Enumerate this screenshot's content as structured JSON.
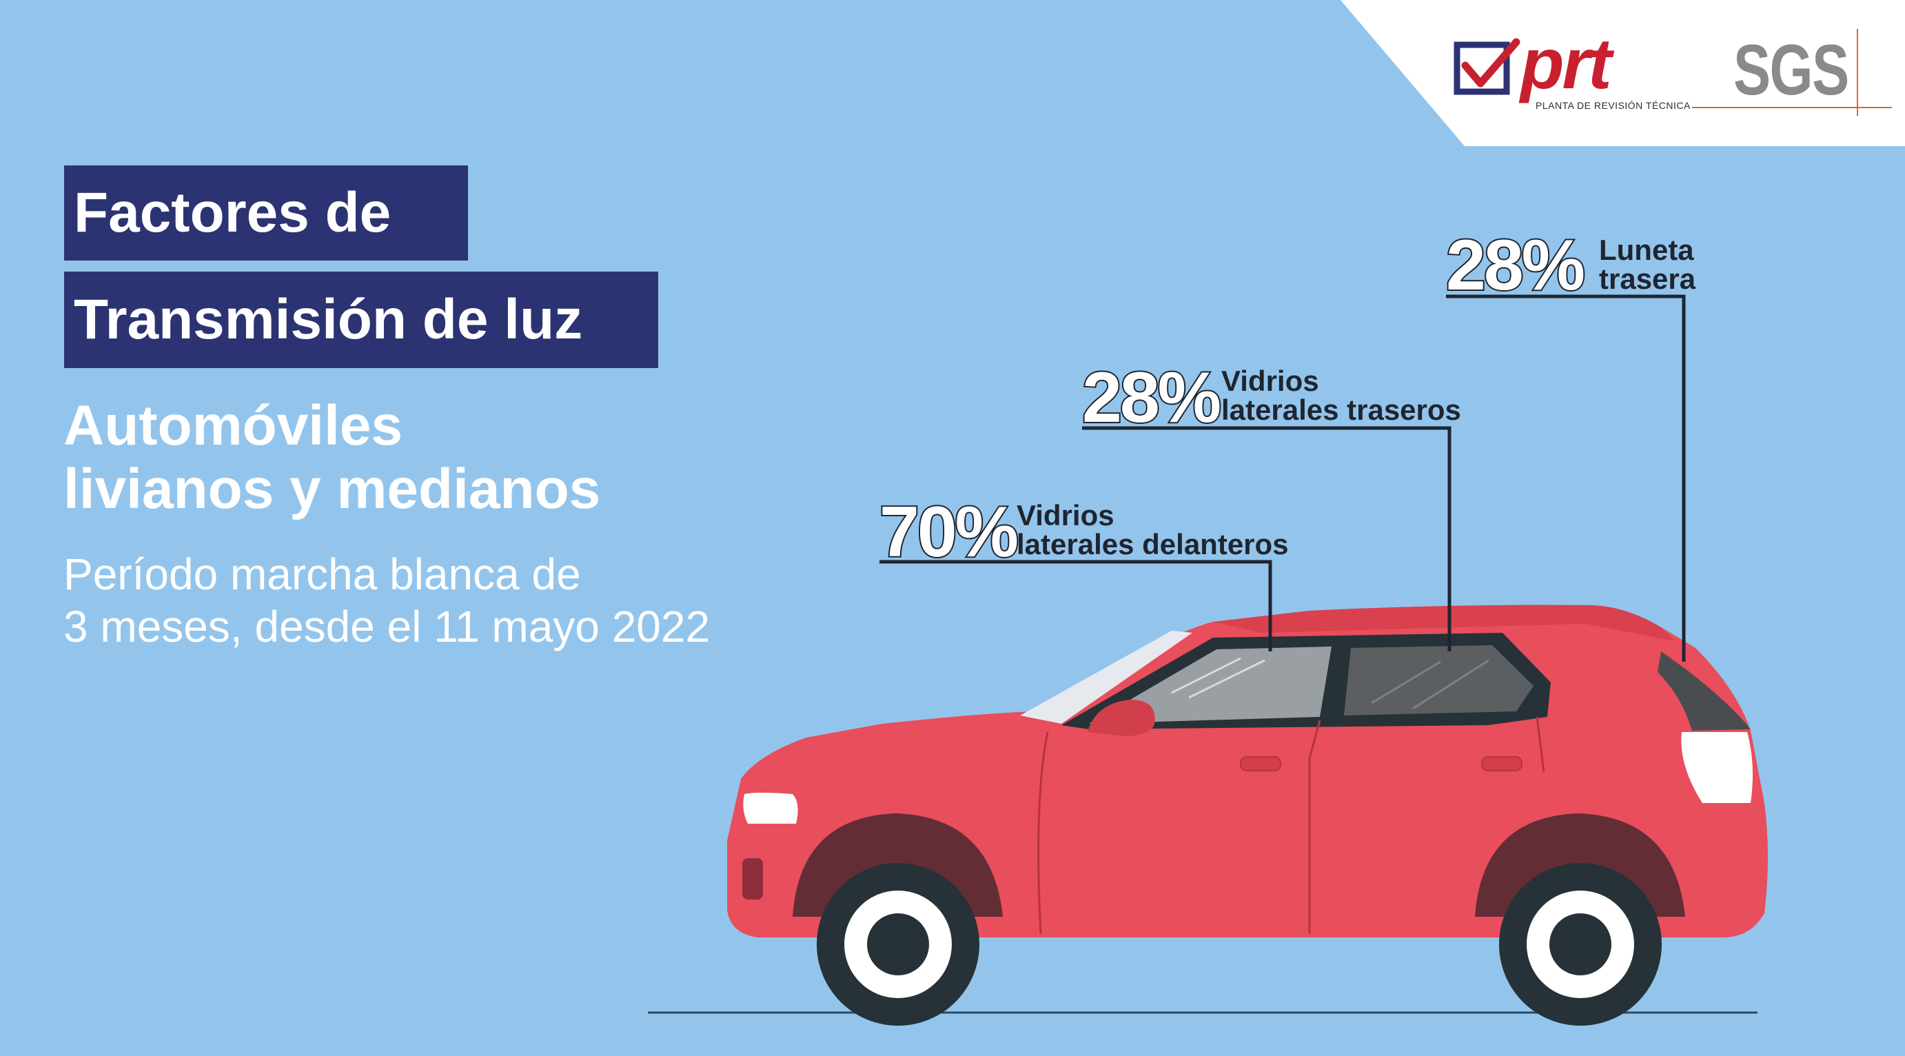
{
  "logos": {
    "prt": {
      "word": "prt",
      "subtitle": "PLANTA DE REVISIÓN TÉCNICA",
      "color": "#c8202f"
    },
    "sgs": {
      "word": "SGS",
      "color": "#8a8a8a",
      "accent": "#e0662a"
    }
  },
  "title": {
    "line1": "Factores de",
    "line2": "Transmisión de luz",
    "box_color": "#2c3372"
  },
  "subtitle": {
    "line1": "Automóviles",
    "line2": "livianos y medianos"
  },
  "period": {
    "line1": "Período marcha blanca de",
    "line2": "3 meses, desde el 11 mayo 2022"
  },
  "labels": [
    {
      "percent": "70%",
      "line1": "Vidrios",
      "line2": "laterales delanteros"
    },
    {
      "percent": "28%",
      "line1": "Vidrios",
      "line2": "laterales traseros"
    },
    {
      "percent": "28%",
      "line1": "Luneta",
      "line2": "trasera"
    }
  ],
  "colors": {
    "background": "#93c5ec",
    "car_body": "#e84e5b",
    "car_dark": "#263238",
    "text_dark": "#1f2530"
  }
}
